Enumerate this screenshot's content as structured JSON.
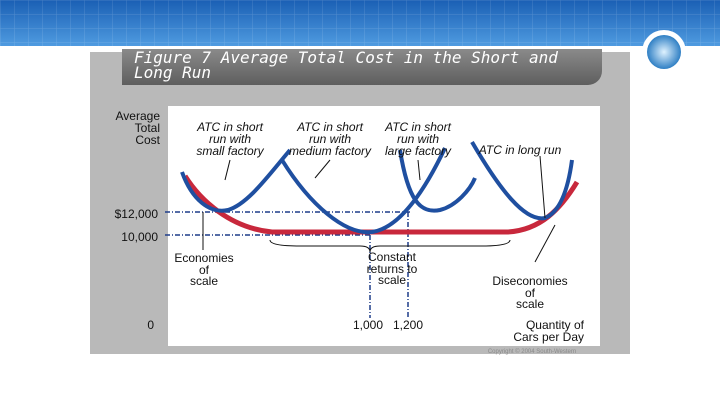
{
  "header": {
    "title": [
      "Figure 7 Average Total Cost in the Short and",
      "Long Run"
    ]
  },
  "diagram": {
    "y_axis_label": [
      "Average",
      "Total",
      "Cost"
    ],
    "curve_labels": [
      {
        "lines": [
          "ATC in short",
          "run with",
          "small factory"
        ]
      },
      {
        "lines": [
          "ATC in short",
          "run with",
          "medium factory"
        ]
      },
      {
        "lines": [
          "ATC in short",
          "run with",
          "large factory"
        ]
      },
      {
        "lines": [
          "ATC in long run"
        ]
      }
    ],
    "y_ticks": [
      "$12,000",
      "10,000",
      "0"
    ],
    "x_ticks": [
      "1,000",
      "1,200"
    ],
    "regions": [
      {
        "lines": [
          "Economies",
          "of",
          "scale"
        ]
      },
      {
        "lines": [
          "Constant",
          "returns to",
          "scale"
        ]
      },
      {
        "lines": [
          "Diseconomies",
          "of",
          "scale"
        ]
      }
    ],
    "x_axis_label": [
      "Quantity of",
      "Cars per Day"
    ],
    "copyright": "Copyright © 2004 South-Western"
  }
}
